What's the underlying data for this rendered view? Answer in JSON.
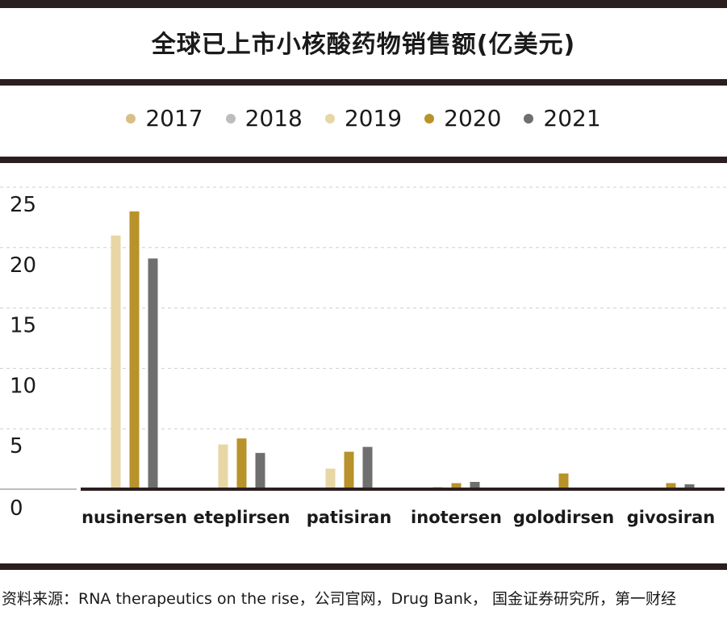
{
  "title": "全球已上市小核酸药物销售额(亿美元)",
  "source_note": "资料来源：RNA therapeutics on the rise，公司官网，Drug Bank， 国金证券研究所，第一财经",
  "chart_data": {
    "type": "bar",
    "title": "全球已上市小核酸药物销售额(亿美元)",
    "categories": [
      "nusinersen",
      "eteplirsen",
      "patisiran",
      "inotersen",
      "golodirsen",
      "givosiran"
    ],
    "series": [
      {
        "name": "2017",
        "color": "#d9bf86",
        "values": [
          null,
          null,
          null,
          null,
          null,
          null
        ]
      },
      {
        "name": "2018",
        "color": "#bdbdbd",
        "values": [
          null,
          null,
          null,
          null,
          null,
          null
        ]
      },
      {
        "name": "2019",
        "color": "#e8d6a5",
        "values": [
          21.0,
          3.7,
          1.7,
          0.2,
          null,
          null
        ]
      },
      {
        "name": "2020",
        "color": "#b8922a",
        "values": [
          23.0,
          4.2,
          3.1,
          0.5,
          1.3,
          0.5
        ]
      },
      {
        "name": "2021",
        "color": "#6f6f6f",
        "values": [
          19.1,
          3.0,
          3.5,
          0.6,
          null,
          0.4
        ]
      }
    ],
    "y_ticks": [
      0,
      5,
      10,
      15,
      20,
      25
    ],
    "ylim": [
      0,
      25
    ],
    "grid": true,
    "legend_position": "top-center"
  }
}
